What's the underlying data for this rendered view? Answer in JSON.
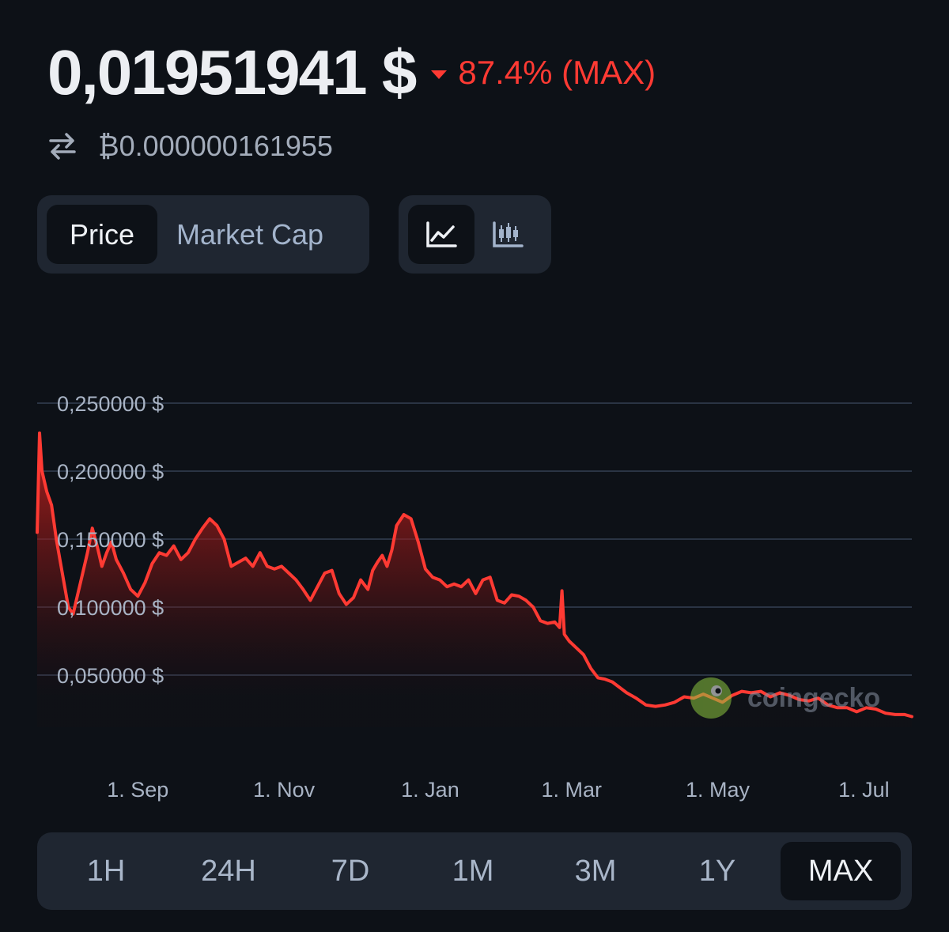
{
  "header": {
    "price": "0,01951941 $",
    "change": "87.4% (MAX)",
    "btc_price": "₿0.000000161955"
  },
  "toggles": {
    "metric": {
      "price": "Price",
      "market_cap": "Market Cap",
      "selected": "Price"
    },
    "chart_type": {
      "line_icon": "line-chart-icon",
      "candle_icon": "candlestick-icon",
      "selected": "line"
    }
  },
  "watermark": {
    "text": "coingecko",
    "icon": "gecko-logo"
  },
  "ranges": {
    "tabs": [
      "1H",
      "24H",
      "7D",
      "1M",
      "3M",
      "1Y",
      "MAX"
    ],
    "selected": "MAX"
  },
  "colors": {
    "background": "#0d1117",
    "panel": "#1f2631",
    "line": "#ff3a33",
    "negative": "#ff3a33"
  },
  "chart_data": {
    "type": "area",
    "title": "",
    "xlabel": "",
    "ylabel": "",
    "ylim": [
      0.02,
      0.25
    ],
    "yticks": [
      0.25,
      0.2,
      0.15,
      0.1,
      0.05
    ],
    "ytick_labels": [
      "0,250000 $",
      "0,200000 $",
      "0,150000 $",
      "0,100000 $",
      "0,050000 $"
    ],
    "xticks": [
      "2024-09-01",
      "2024-11-01",
      "2025-01-01",
      "2025-03-01",
      "2025-05-01",
      "2025-07-01"
    ],
    "xtick_labels": [
      "1. Sep",
      "1. Nov",
      "1. Jan",
      "1. Mar",
      "1. May",
      "1. Jul"
    ],
    "grid": true,
    "legend": "none",
    "series": [
      {
        "x": [
          "2024-07-21",
          "2024-07-22",
          "2024-07-23",
          "2024-07-25",
          "2024-07-27",
          "2024-07-29",
          "2024-08-01",
          "2024-08-03",
          "2024-08-05",
          "2024-08-07",
          "2024-08-09",
          "2024-08-11",
          "2024-08-13",
          "2024-08-15",
          "2024-08-17",
          "2024-08-19",
          "2024-08-21",
          "2024-08-23",
          "2024-08-26",
          "2024-08-29",
          "2024-09-01",
          "2024-09-04",
          "2024-09-07",
          "2024-09-10",
          "2024-09-13",
          "2024-09-16",
          "2024-09-19",
          "2024-09-22",
          "2024-09-25",
          "2024-09-28",
          "2024-10-01",
          "2024-10-04",
          "2024-10-07",
          "2024-10-10",
          "2024-10-13",
          "2024-10-16",
          "2024-10-19",
          "2024-10-22",
          "2024-10-25",
          "2024-10-28",
          "2024-10-31",
          "2024-11-03",
          "2024-11-06",
          "2024-11-09",
          "2024-11-12",
          "2024-11-15",
          "2024-11-18",
          "2024-11-21",
          "2024-11-24",
          "2024-11-27",
          "2024-11-30",
          "2024-12-03",
          "2024-12-06",
          "2024-12-08",
          "2024-12-10",
          "2024-12-12",
          "2024-12-14",
          "2024-12-16",
          "2024-12-18",
          "2024-12-21",
          "2024-12-24",
          "2024-12-27",
          "2024-12-30",
          "2025-01-02",
          "2025-01-05",
          "2025-01-08",
          "2025-01-11",
          "2025-01-14",
          "2025-01-17",
          "2025-01-20",
          "2025-01-23",
          "2025-01-26",
          "2025-01-29",
          "2025-02-01",
          "2025-02-04",
          "2025-02-07",
          "2025-02-10",
          "2025-02-13",
          "2025-02-16",
          "2025-02-19",
          "2025-02-22",
          "2025-02-24",
          "2025-02-25",
          "2025-02-26",
          "2025-02-28",
          "2025-03-03",
          "2025-03-06",
          "2025-03-09",
          "2025-03-12",
          "2025-03-15",
          "2025-03-18",
          "2025-03-21",
          "2025-03-24",
          "2025-03-28",
          "2025-04-01",
          "2025-04-05",
          "2025-04-09",
          "2025-04-13",
          "2025-04-17",
          "2025-04-21",
          "2025-04-25",
          "2025-04-29",
          "2025-05-03",
          "2025-05-07",
          "2025-05-11",
          "2025-05-15",
          "2025-05-19",
          "2025-05-23",
          "2025-05-27",
          "2025-05-31",
          "2025-06-04",
          "2025-06-08",
          "2025-06-12",
          "2025-06-16",
          "2025-06-20",
          "2025-06-24",
          "2025-06-28",
          "2025-07-02",
          "2025-07-06",
          "2025-07-10",
          "2025-07-14",
          "2025-07-18",
          "2025-07-21"
        ],
        "y": [
          0.155,
          0.228,
          0.2,
          0.185,
          0.175,
          0.15,
          0.12,
          0.1,
          0.095,
          0.11,
          0.125,
          0.14,
          0.158,
          0.145,
          0.13,
          0.14,
          0.148,
          0.135,
          0.125,
          0.113,
          0.108,
          0.118,
          0.132,
          0.14,
          0.138,
          0.145,
          0.135,
          0.14,
          0.15,
          0.158,
          0.165,
          0.16,
          0.15,
          0.13,
          0.133,
          0.136,
          0.13,
          0.14,
          0.13,
          0.128,
          0.13,
          0.125,
          0.12,
          0.113,
          0.105,
          0.115,
          0.125,
          0.127,
          0.11,
          0.102,
          0.107,
          0.12,
          0.113,
          0.127,
          0.133,
          0.138,
          0.13,
          0.142,
          0.16,
          0.168,
          0.165,
          0.148,
          0.128,
          0.122,
          0.12,
          0.115,
          0.117,
          0.115,
          0.12,
          0.11,
          0.12,
          0.122,
          0.105,
          0.103,
          0.109,
          0.108,
          0.105,
          0.1,
          0.09,
          0.088,
          0.089,
          0.085,
          0.112,
          0.08,
          0.075,
          0.07,
          0.065,
          0.055,
          0.048,
          0.047,
          0.045,
          0.041,
          0.037,
          0.033,
          0.028,
          0.027,
          0.028,
          0.03,
          0.034,
          0.033,
          0.036,
          0.033,
          0.03,
          0.035,
          0.038,
          0.037,
          0.038,
          0.034,
          0.037,
          0.035,
          0.032,
          0.031,
          0.033,
          0.028,
          0.026,
          0.026,
          0.023,
          0.026,
          0.025,
          0.022,
          0.021,
          0.021,
          0.0195
        ]
      }
    ]
  }
}
